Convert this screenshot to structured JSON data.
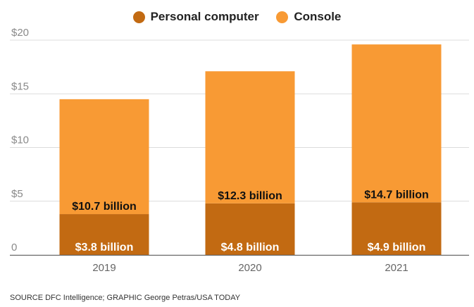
{
  "chart_data": {
    "type": "bar",
    "stacked": true,
    "categories": [
      "2019",
      "2020",
      "2021"
    ],
    "series": [
      {
        "name": "Personal computer",
        "values": [
          3.8,
          4.8,
          4.9
        ],
        "labels": [
          "$3.8 billion",
          "$4.8 billion",
          "$4.9 billion"
        ],
        "color": "#c26a12"
      },
      {
        "name": "Console",
        "values": [
          10.7,
          12.3,
          14.7
        ],
        "labels": [
          "$10.7 billion",
          "$12.3 billion",
          "$14.7 billion"
        ],
        "color": "#f89a34"
      }
    ],
    "y_ticks": [
      {
        "value": 0,
        "label": "0"
      },
      {
        "value": 5,
        "label": "$5"
      },
      {
        "value": 10,
        "label": "$10"
      },
      {
        "value": 15,
        "label": "$15"
      },
      {
        "value": 20,
        "label": "$20"
      }
    ],
    "ylim": [
      0,
      20
    ],
    "grid": true,
    "legend_position": "top-center"
  },
  "source_text": "SOURCE DFC Intelligence; GRAPHIC George Petras/USA TODAY"
}
